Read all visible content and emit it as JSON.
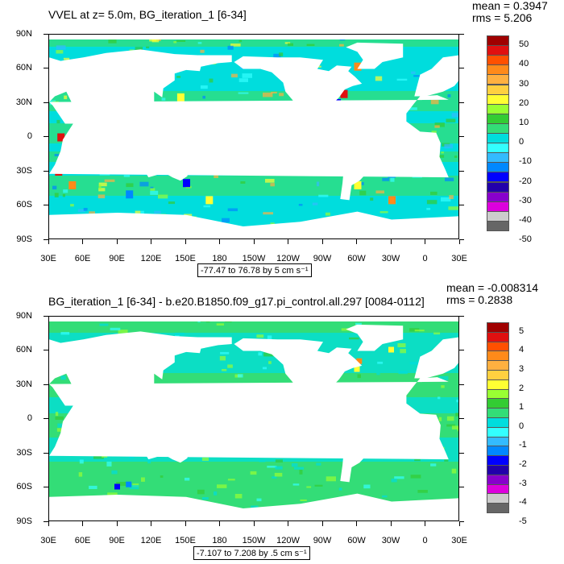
{
  "panels": [
    {
      "title": "VVEL at z=   5.0m, BG_iteration_1 [6-34]",
      "stats": [
        "mean = 0.3947",
        "rms = 5.206"
      ],
      "range_label": "-77.47 to 76.78 by 5 cm s⁻¹",
      "colorbar_labels": [
        "50",
        "40",
        "30",
        "20",
        "10",
        "0",
        "-10",
        "-20",
        "-30",
        "-40",
        "-50"
      ],
      "colors": [
        "#a00000",
        "#e01010",
        "#ff5000",
        "#ff8a1a",
        "#ffb040",
        "#ffd040",
        "#ffff33",
        "#99ff33",
        "#33cc33",
        "#33dd77",
        "#00dddd",
        "#33ffff",
        "#33bbff",
        "#0088ff",
        "#0000ff",
        "#2200aa",
        "#8800cc",
        "#dd00dd",
        "#cccccc",
        "#666666"
      ]
    },
    {
      "title": "BG_iteration_1 [6-34] - b.e20.B1850.f09_g17.pi_control.all.297 [0084-0112]",
      "stats": [
        "mean = -0.008314",
        "rms = 0.2838"
      ],
      "range_label": "-7.107 to 7.208 by .5 cm s⁻¹",
      "colorbar_labels": [
        "5",
        "4",
        "3",
        "2",
        "1",
        "0",
        "-1",
        "-2",
        "-3",
        "-4",
        "-5"
      ],
      "colors": [
        "#a00000",
        "#e01010",
        "#ff5000",
        "#ff8a1a",
        "#ffb040",
        "#ffd040",
        "#ffff33",
        "#99ff33",
        "#33cc33",
        "#33dd77",
        "#00dddd",
        "#33ffff",
        "#33bbff",
        "#0088ff",
        "#0000ff",
        "#2200aa",
        "#8800cc",
        "#dd00dd",
        "#cccccc",
        "#666666"
      ]
    }
  ],
  "axes": {
    "lat_labels": [
      "90N",
      "60N",
      "30N",
      "0",
      "30S",
      "60S",
      "90S"
    ],
    "lon_labels": [
      "30E",
      "60E",
      "90E",
      "120E",
      "150E",
      "180",
      "150W",
      "120W",
      "90W",
      "60W",
      "30W",
      "0",
      "30E"
    ]
  },
  "colors": {
    "ocean_base": "#33dd77",
    "ocean_alt": "#00dddd",
    "ocean_green": "#33cc33",
    "land": "#ffffff"
  }
}
